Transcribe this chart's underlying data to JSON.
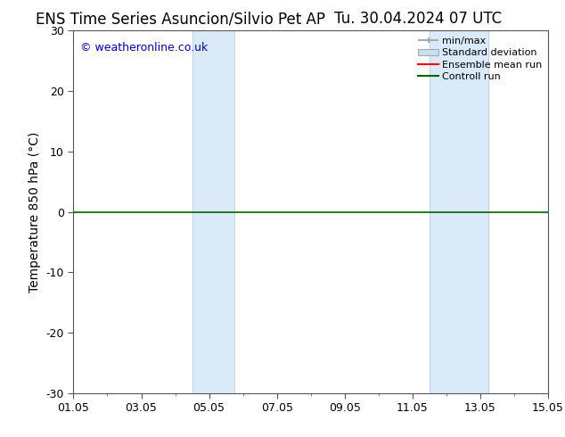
{
  "title_left": "ENS Time Series Asuncion/Silvio Pet AP",
  "title_right": "Tu. 30.04.2024 07 UTC",
  "ylabel": "Temperature 850 hPa (°C)",
  "ylim": [
    -30,
    30
  ],
  "yticks": [
    -30,
    -20,
    -10,
    0,
    10,
    20,
    30
  ],
  "xtick_labels": [
    "01.05",
    "03.05",
    "05.05",
    "07.05",
    "09.05",
    "11.05",
    "13.05",
    "15.05"
  ],
  "xtick_values": [
    0,
    2,
    4,
    6,
    8,
    10,
    12,
    14
  ],
  "xlim": [
    0,
    14
  ],
  "watermark": "© weatheronline.co.uk",
  "watermark_color": "#0000cc",
  "background_color": "#ffffff",
  "plot_bg_color": "#ffffff",
  "shaded_bands": [
    {
      "x_start": 3.5,
      "x_end": 4.75,
      "color": "#daeaf8"
    },
    {
      "x_start": 10.5,
      "x_end": 12.25,
      "color": "#daeaf8"
    }
  ],
  "band_edge_lines": [
    {
      "x": 3.5,
      "color": "#b8d4ec",
      "lw": 0.7
    },
    {
      "x": 4.75,
      "color": "#b8d4ec",
      "lw": 0.7
    },
    {
      "x": 10.5,
      "color": "#b8d4ec",
      "lw": 0.7
    },
    {
      "x": 12.25,
      "color": "#b8d4ec",
      "lw": 0.7
    }
  ],
  "control_run_y": 0,
  "control_run_color": "#006400",
  "control_run_lw": 1.2,
  "ensemble_mean_color": "#ff0000",
  "legend_entries": [
    "min/max",
    "Standard deviation",
    "Ensemble mean run",
    "Controll run"
  ],
  "minmax_color": "#aaaaaa",
  "stddev_color": "#c8dff0",
  "title_fontsize": 12,
  "axis_label_fontsize": 10,
  "tick_fontsize": 9,
  "legend_fontsize": 8
}
